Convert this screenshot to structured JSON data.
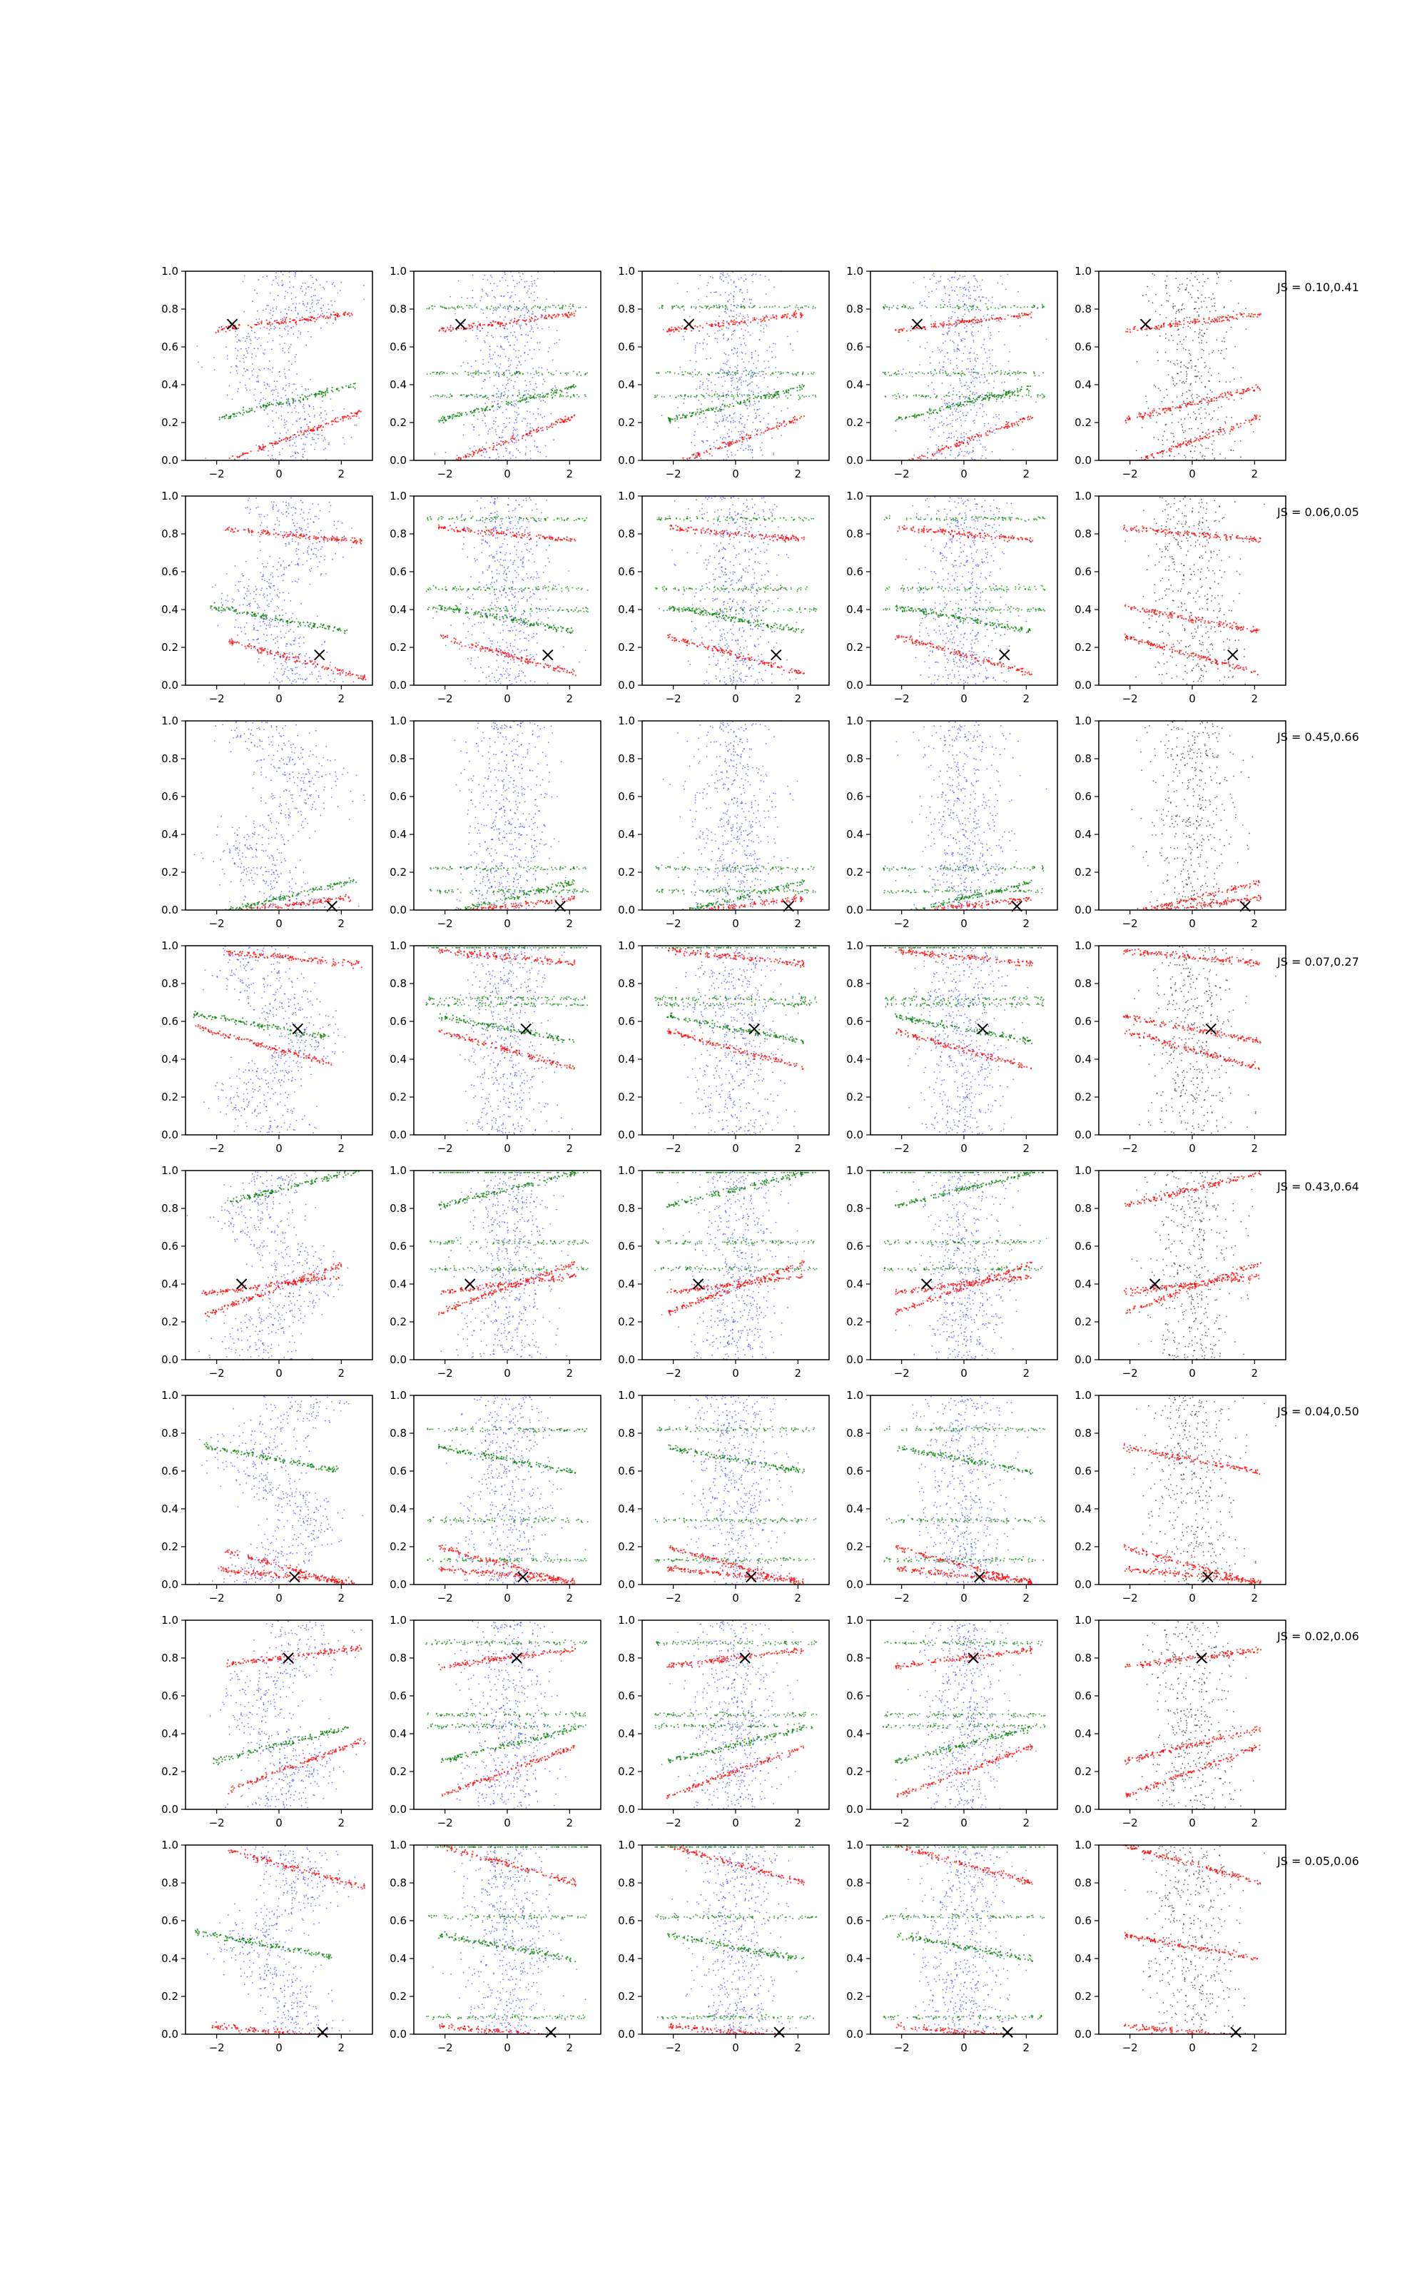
{
  "chart_data": {
    "type": "scatter",
    "layout": "grid of 8 rows x 5 columns of scatter panels",
    "xlim": [
      -3,
      3
    ],
    "ylim": [
      0,
      1
    ],
    "xticks": [
      -2,
      0,
      2
    ],
    "yticks": [
      0.0,
      0.2,
      0.4,
      0.6,
      0.8,
      1.0
    ],
    "ytick_labels": [
      "0.0",
      "0.2",
      "0.4",
      "0.6",
      "0.8",
      "1.0"
    ],
    "series_colors": {
      "background": "#1f1fff",
      "model": "#ff0000",
      "secondary": "#008000",
      "reference": "#000000"
    },
    "columns": [
      "background (blue) + red + green samples, spiral data",
      "blue + red + green samples",
      "blue + red + green samples",
      "blue + red + green samples",
      "reference samples (black) + red samples, with JS annotation"
    ],
    "rows": [
      {
        "js": "JS = 0.10,0.41",
        "x_marker": [
          -1.5,
          0.72
        ],
        "stripes": [
          0.73,
          0.3,
          0.1
        ]
      },
      {
        "js": "JS = 0.06,0.05",
        "x_marker": [
          1.3,
          0.16
        ],
        "stripes": [
          0.8,
          0.35,
          0.16
        ]
      },
      {
        "js": "JS = 0.45,0.66",
        "x_marker": [
          1.7,
          0.02
        ],
        "stripes": [
          0.02,
          0.06
        ]
      },
      {
        "js": "JS = 0.07,0.27",
        "x_marker": [
          0.6,
          0.56
        ],
        "stripes": [
          0.94,
          0.56,
          0.45
        ]
      },
      {
        "js": "JS = 0.43,0.64",
        "x_marker": [
          -1.2,
          0.4
        ],
        "stripes": [
          0.4,
          0.9,
          0.38
        ]
      },
      {
        "js": "JS = 0.04,0.50",
        "x_marker": [
          0.5,
          0.04
        ],
        "stripes": [
          0.05,
          0.66,
          0.1
        ]
      },
      {
        "js": "JS = 0.02,0.06",
        "x_marker": [
          0.3,
          0.8
        ],
        "stripes": [
          0.8,
          0.34,
          0.2
        ]
      },
      {
        "js": "JS = 0.05,0.06",
        "x_marker": [
          1.4,
          0.01
        ],
        "stripes": [
          0.01,
          0.46,
          0.9
        ]
      }
    ]
  }
}
